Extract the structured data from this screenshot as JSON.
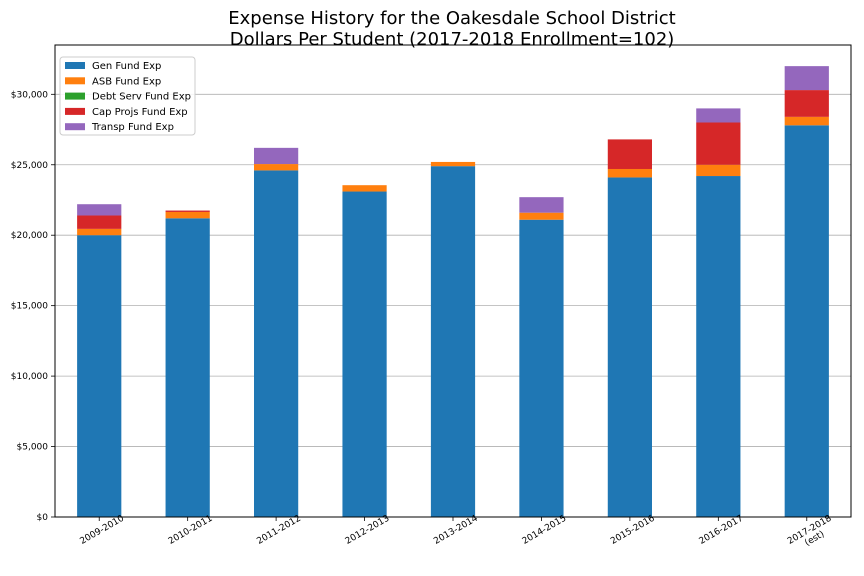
{
  "chart_data": {
    "type": "bar",
    "stacked": true,
    "title": "Expense History for the Oakesdale School District",
    "subtitle": "Dollars Per Student (2017-2018 Enrollment=102)",
    "xlabel": "",
    "ylabel": "",
    "ylim": [
      0,
      33500
    ],
    "yticks": [
      0,
      5000,
      10000,
      15000,
      20000,
      25000,
      30000
    ],
    "ytick_labels": [
      "$0",
      "$5,000",
      "$10,000",
      "$15,000",
      "$20,000",
      "$25,000",
      "$30,000"
    ],
    "grid": "horizontal",
    "legend_position": "top-left",
    "categories": [
      "2009-2010",
      "2010-2011",
      "2011-2012",
      "2012-2013",
      "2013-2014",
      "2014-2015",
      "2015-2016",
      "2016-2017",
      "2017-2018\n(est)"
    ],
    "series": [
      {
        "name": "Gen Fund Exp",
        "color": "#1f77b4",
        "values": [
          20000,
          21200,
          24600,
          23100,
          24900,
          21100,
          24100,
          24200,
          27800
        ]
      },
      {
        "name": "ASB Fund Exp",
        "color": "#ff7f0e",
        "values": [
          450,
          450,
          450,
          450,
          300,
          500,
          600,
          800,
          600
        ]
      },
      {
        "name": "Debt Serv Fund Exp",
        "color": "#2ca02c",
        "values": [
          0,
          0,
          0,
          0,
          0,
          0,
          0,
          0,
          0
        ]
      },
      {
        "name": "Cap Projs Fund Exp",
        "color": "#d62728",
        "values": [
          950,
          100,
          0,
          0,
          0,
          0,
          2100,
          3000,
          1900
        ]
      },
      {
        "name": "Transp Fund Exp",
        "color": "#9467bd",
        "values": [
          800,
          0,
          1150,
          0,
          0,
          1100,
          0,
          1000,
          1700
        ]
      }
    ]
  }
}
